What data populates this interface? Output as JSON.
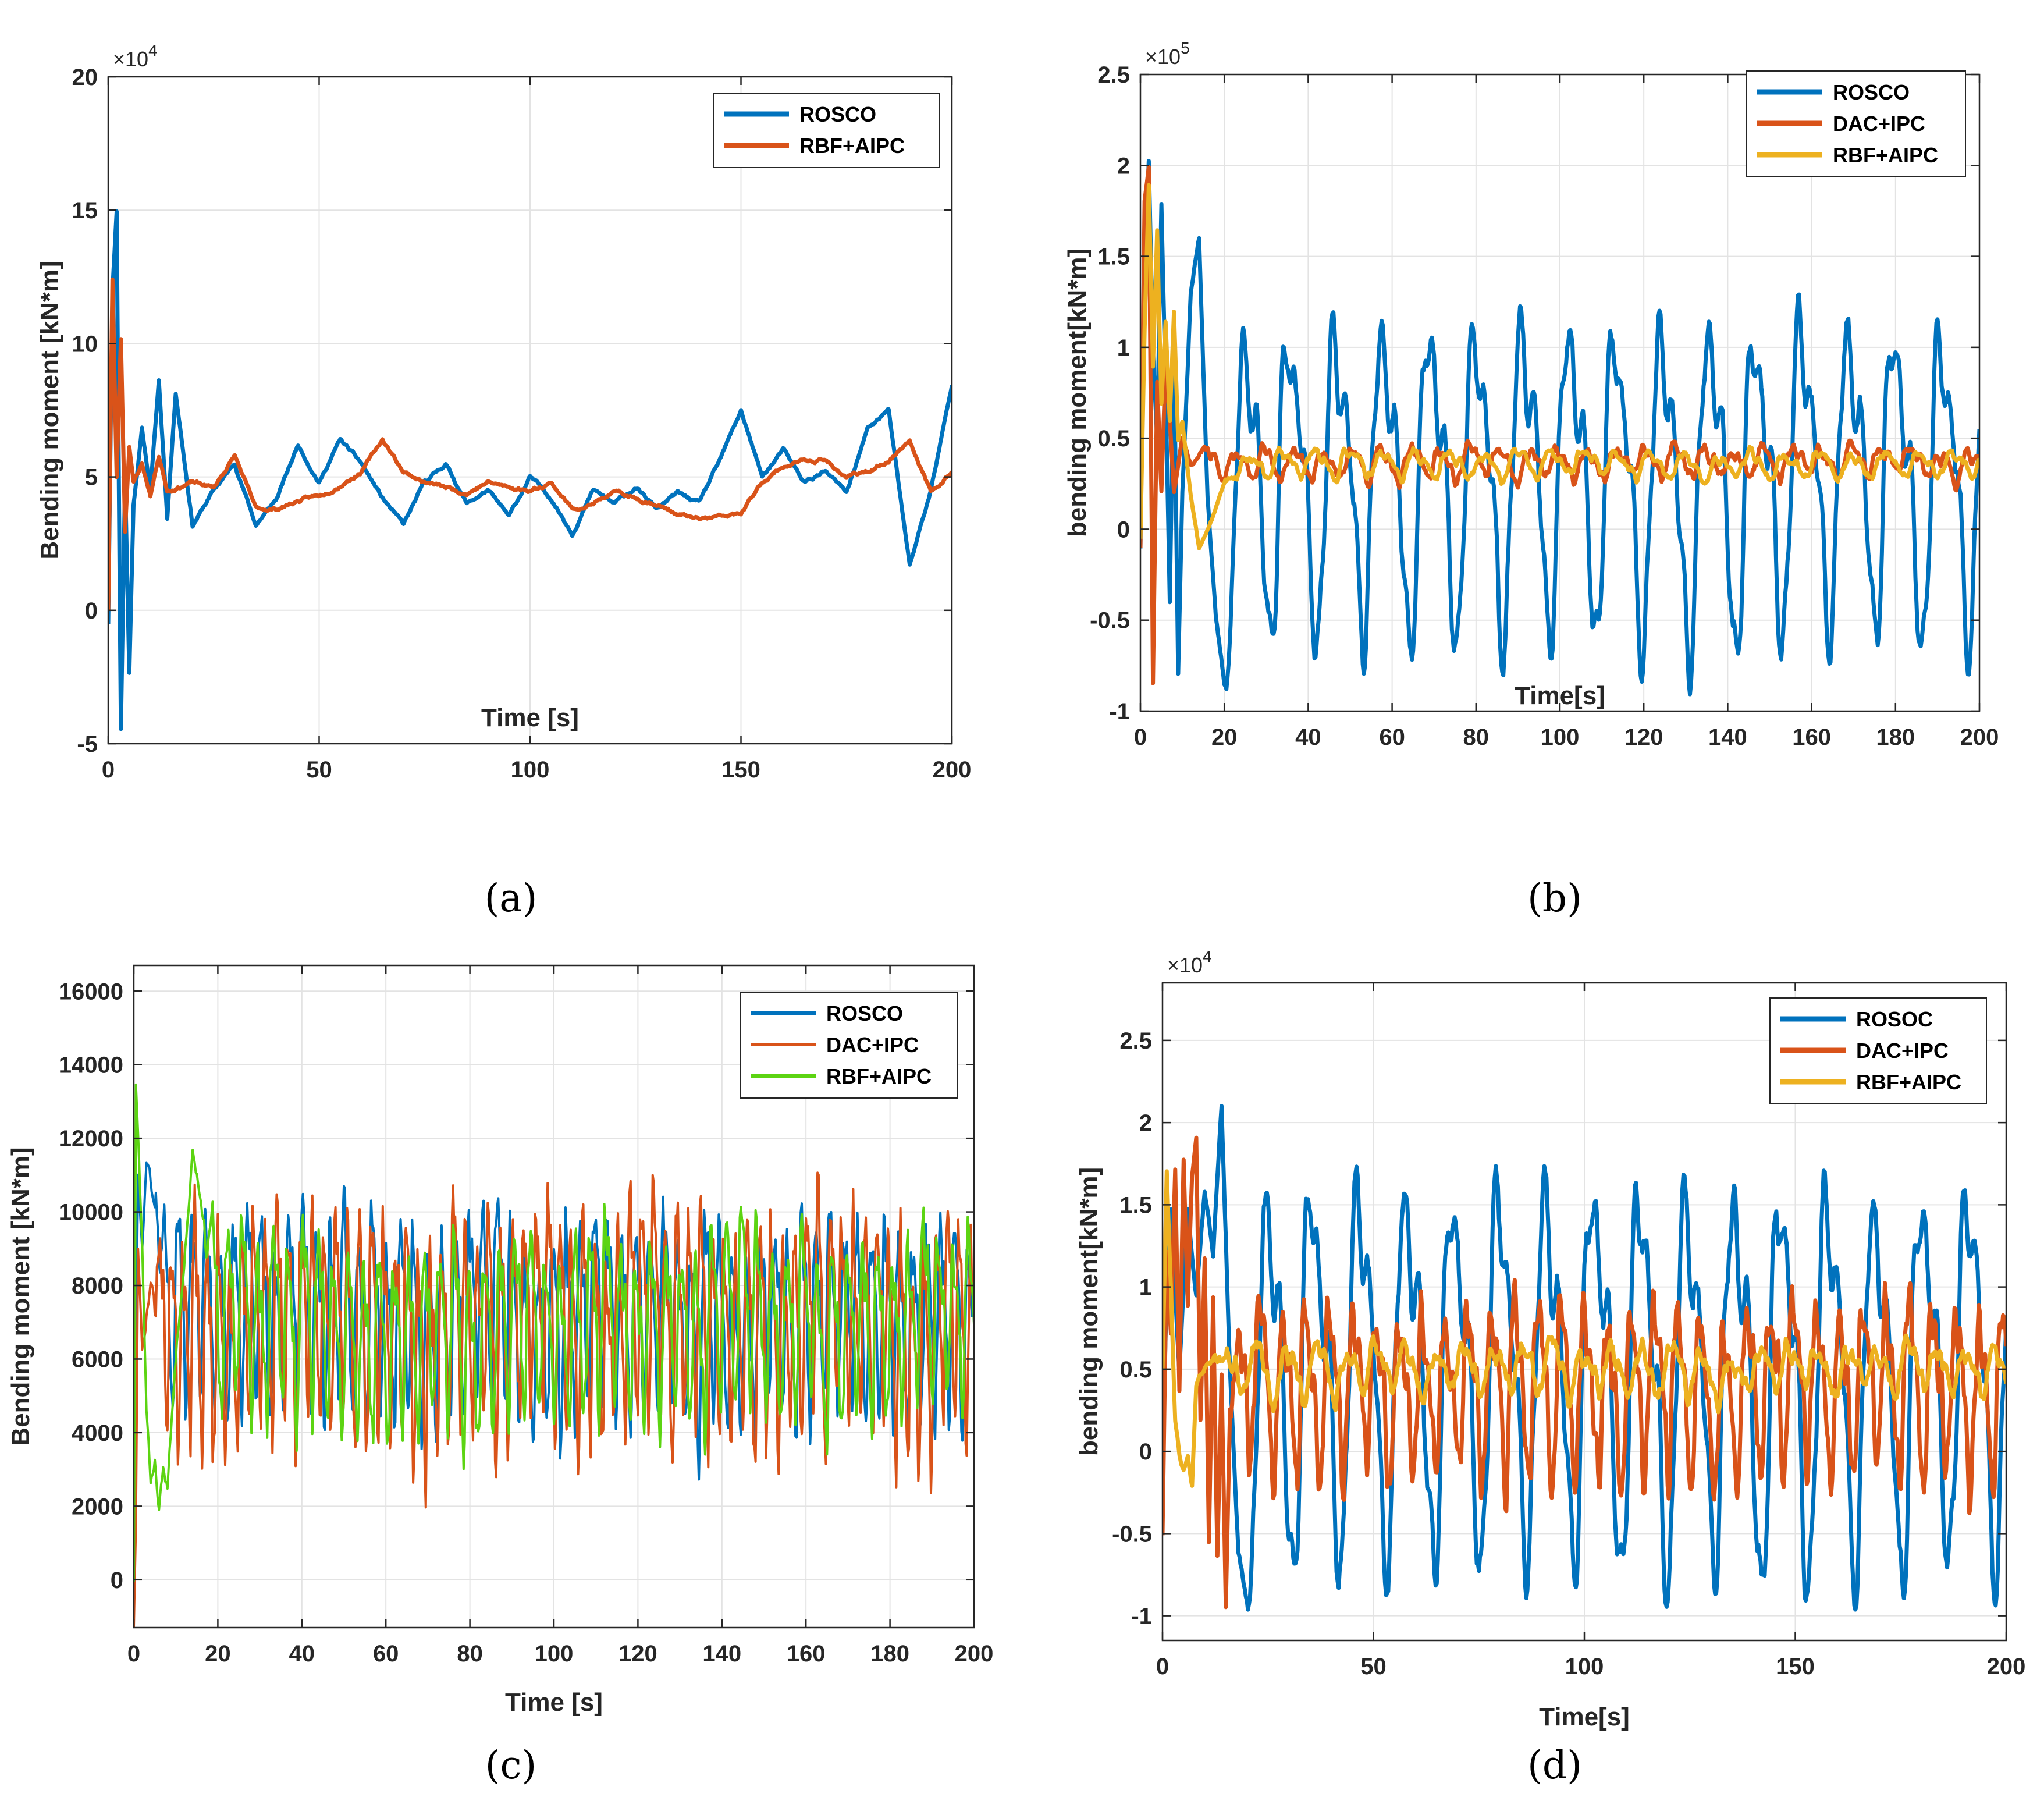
{
  "figure": {
    "captions": [
      "(a)",
      "(b)",
      "(c)",
      "(d)"
    ],
    "colors": {
      "blue": "#0072BD",
      "orange": "#D95319",
      "yellow": "#EDB120",
      "green": "#5CD412",
      "grid": "#e3e3e3",
      "axis": "#262626"
    }
  },
  "chart_data": [
    {
      "type": "line",
      "panel": "a",
      "title": "",
      "xlabel": "Time [s]",
      "ylabel": "Bending moment [kN*m]",
      "exponent_base": "×10",
      "exponent_power": "4",
      "xlim": [
        0,
        200
      ],
      "ylim": [
        -5,
        20
      ],
      "xticks": [
        0,
        50,
        100,
        150,
        200
      ],
      "xtick_labels": [
        "0",
        "50",
        "100",
        "150",
        "200"
      ],
      "yticks": [
        -5,
        0,
        5,
        10,
        15,
        20
      ],
      "ytick_labels": [
        "-5",
        "0",
        "5",
        "10",
        "15",
        "20"
      ],
      "legend_position": "top-right",
      "series": [
        {
          "name": "ROSCO",
          "color": "#0072BD",
          "width": 7,
          "mean": 4.9,
          "base_amp": 0.9,
          "period": 11,
          "noise": 0.35,
          "seed": 11,
          "x": [
            0,
            1,
            2,
            3,
            4,
            5,
            6,
            8,
            10,
            12,
            14,
            16,
            20,
            25,
            30,
            35,
            40,
            45,
            50,
            55,
            60,
            65,
            70,
            75,
            80,
            85,
            90,
            95,
            100,
            105,
            110,
            115,
            120,
            125,
            130,
            135,
            140,
            145,
            150,
            155,
            160,
            165,
            170,
            175,
            180,
            185,
            190,
            195,
            200
          ],
          "y": [
            -0.5,
            12,
            15,
            -4.4,
            5,
            -2.3,
            4,
            6.8,
            4.5,
            8.6,
            3.5,
            8.2,
            3.2,
            4.5,
            5.5,
            3.2,
            4.2,
            6.2,
            4.8,
            6.4,
            5.5,
            4.2,
            3.2,
            4.8,
            5.5,
            4,
            4.5,
            3.5,
            5,
            4.2,
            2.9,
            4.5,
            4,
            4.6,
            3.8,
            4.4,
            4,
            5.6,
            7.5,
            5,
            6,
            4.8,
            5.2,
            4.4,
            6.8,
            7.5,
            1.7,
            4.5,
            8.4
          ]
        },
        {
          "name": "RBF+AIPC",
          "color": "#D95319",
          "width": 7,
          "mean": 4.5,
          "base_amp": 0.5,
          "period": 9,
          "noise": 0.35,
          "seed": 23,
          "x": [
            0,
            1,
            2,
            3,
            4,
            5,
            6,
            8,
            10,
            12,
            14,
            16,
            20,
            25,
            30,
            35,
            40,
            45,
            50,
            55,
            60,
            65,
            70,
            75,
            80,
            85,
            90,
            95,
            100,
            105,
            110,
            115,
            120,
            125,
            130,
            135,
            140,
            145,
            150,
            155,
            160,
            165,
            170,
            175,
            180,
            185,
            190,
            195,
            200
          ],
          "y": [
            0,
            12.4,
            5,
            10.2,
            3,
            6.2,
            4.8,
            5.5,
            4.3,
            5.8,
            4.5,
            4.6,
            4.8,
            4.6,
            5.8,
            3.8,
            3.8,
            4.1,
            4.3,
            4.7,
            5.2,
            6.4,
            5.2,
            4.8,
            4.6,
            4.4,
            4.8,
            4.6,
            4.5,
            4.8,
            3.8,
            4,
            4.4,
            4.2,
            4,
            3.6,
            3.4,
            3.5,
            3.6,
            4.8,
            5.4,
            5.6,
            5.6,
            5,
            5.2,
            5.6,
            6.4,
            4.4,
            5.2
          ]
        }
      ]
    },
    {
      "type": "line",
      "panel": "b",
      "title": "",
      "xlabel": "Time[s]",
      "ylabel": "bending moment[kN*m]",
      "exponent_base": "×10",
      "exponent_power": "5",
      "xlim": [
        0,
        200
      ],
      "ylim": [
        -1,
        2.5
      ],
      "xticks": [
        0,
        20,
        40,
        60,
        80,
        100,
        120,
        140,
        160,
        180,
        200
      ],
      "xtick_labels": [
        "0",
        "20",
        "40",
        "60",
        "80",
        "100",
        "120",
        "140",
        "160",
        "180",
        "200"
      ],
      "yticks": [
        -1,
        -0.5,
        0,
        0.5,
        1,
        1.5,
        2,
        2.5
      ],
      "ytick_labels": [
        "-1",
        "-0.5",
        "0",
        "0.5",
        "1",
        "1.5",
        "2",
        "2.5"
      ],
      "legend_position": "top-right",
      "series": [
        {
          "name": "ROSCO",
          "color": "#0072BD",
          "width": 7,
          "mean": 0.3,
          "base_amp": 0.75,
          "period": 11.1,
          "noise": 0.1,
          "seed": 37,
          "x": [
            0,
            1,
            2,
            3,
            4,
            5,
            6,
            7,
            8,
            9,
            10,
            12,
            14,
            16,
            18,
            20
          ],
          "y": [
            -0.1,
            1.5,
            2.05,
            1.0,
            0.5,
            1.8,
            0.8,
            -0.4,
            1.0,
            -0.8,
            0.2,
            1.3,
            1.6,
            0.2,
            -0.5,
            -0.85
          ]
        },
        {
          "name": "DAC+IPC",
          "color": "#D95319",
          "width": 7,
          "mean": 0.37,
          "base_amp": 0.07,
          "period": 7,
          "noise": 0.05,
          "seed": 41,
          "x": [
            0,
            1,
            2,
            3,
            4,
            5,
            6,
            7,
            8,
            10,
            12,
            14
          ],
          "y": [
            -0.1,
            1.8,
            2.0,
            -0.85,
            0.8,
            0.2,
            0.9,
            0.6,
            0.2,
            0.5,
            0.35,
            0.4
          ]
        },
        {
          "name": "RBF+AIPC",
          "color": "#EDB120",
          "width": 7,
          "mean": 0.36,
          "base_amp": 0.06,
          "period": 8,
          "noise": 0.04,
          "seed": 53,
          "x": [
            0,
            1,
            2,
            3,
            4,
            5,
            6,
            7,
            8,
            9,
            10,
            12,
            14,
            17,
            20
          ],
          "y": [
            -0.05,
            1.1,
            1.9,
            0.9,
            1.65,
            0.7,
            1.15,
            0.6,
            1.2,
            0.5,
            0.6,
            0.2,
            -0.1,
            0.05,
            0.25
          ]
        }
      ]
    },
    {
      "type": "line",
      "panel": "c",
      "title": "",
      "xlabel": "Time [s]",
      "ylabel": "Bending moment [kN*m]",
      "exponent_base": "",
      "exponent_power": "",
      "xlim": [
        0,
        200
      ],
      "ylim": [
        -1300,
        16700
      ],
      "xticks": [
        0,
        20,
        40,
        60,
        80,
        100,
        120,
        140,
        160,
        180,
        200
      ],
      "xtick_labels": [
        "0",
        "20",
        "40",
        "60",
        "80",
        "100",
        "120",
        "140",
        "160",
        "180",
        "200"
      ],
      "yticks": [
        0,
        2000,
        4000,
        6000,
        8000,
        10000,
        12000,
        14000,
        16000
      ],
      "ytick_labels": [
        "0",
        "2000",
        "4000",
        "6000",
        "8000",
        "10000",
        "12000",
        "14000",
        "16000"
      ],
      "legend_position": "top-right",
      "series": [
        {
          "name": "ROSCO",
          "color": "#0072BD",
          "width": 4,
          "mean": 7200,
          "base_amp": 2200,
          "period": 3.3,
          "noise": 1300,
          "seed": 61,
          "x": [
            0,
            1,
            2,
            3,
            5
          ],
          "y": [
            0,
            11000,
            9000,
            11500,
            10000
          ]
        },
        {
          "name": "DAC+IPC",
          "color": "#D95319",
          "width": 4,
          "mean": 7000,
          "base_amp": 2500,
          "period": 2.8,
          "noise": 1500,
          "seed": 71,
          "x": [
            0,
            0.5,
            1,
            2,
            4
          ],
          "y": [
            -1200,
            1500,
            9000,
            6000,
            8000
          ]
        },
        {
          "name": "RBF+AIPC",
          "color": "#5CD412",
          "width": 4,
          "mean": 7000,
          "base_amp": 2000,
          "period": 3.6,
          "noise": 1100,
          "seed": 83,
          "x": [
            0,
            0.5,
            1,
            2,
            3,
            4,
            5,
            6,
            7,
            8,
            10,
            12,
            14,
            16
          ],
          "y": [
            0,
            13400,
            12000,
            9000,
            4500,
            2500,
            3200,
            2000,
            3000,
            2500,
            6000,
            9000,
            11800,
            10500
          ]
        }
      ]
    },
    {
      "type": "line",
      "panel": "d",
      "title": "",
      "xlabel": "Time[s]",
      "ylabel": "bending moment[kN*m]",
      "exponent_base": "×10",
      "exponent_power": "4",
      "xlim": [
        0,
        200
      ],
      "ylim": [
        -1.15,
        2.85
      ],
      "xticks": [
        0,
        50,
        100,
        150,
        200
      ],
      "xtick_labels": [
        "0",
        "50",
        "100",
        "150",
        "200"
      ],
      "yticks": [
        -1,
        -0.5,
        0,
        0.5,
        1,
        1.5,
        2,
        2.5
      ],
      "ytick_labels": [
        "-1",
        "-0.5",
        "0",
        "0.5",
        "1",
        "1.5",
        "2",
        "2.5"
      ],
      "legend_position": "top-right",
      "series": [
        {
          "name": "ROSOC",
          "color": "#0072BD",
          "width": 7,
          "mean": 0.5,
          "base_amp": 1.0,
          "period": 11.1,
          "noise": 0.15,
          "seed": 97,
          "x": [
            0,
            1,
            2,
            4,
            6,
            8,
            10,
            12,
            14,
            16,
            18,
            20
          ],
          "y": [
            0,
            1.0,
            1.5,
            0.5,
            1.5,
            1.0,
            1.6,
            1.2,
            2.1,
            0.5,
            -0.6,
            -0.9
          ]
        },
        {
          "name": "DAC+IPC",
          "color": "#D95319",
          "width": 7,
          "mean": 0.4,
          "base_amp": 0.45,
          "period": 5.5,
          "noise": 0.2,
          "seed": 101,
          "x": [
            0,
            1,
            2,
            3,
            4,
            5,
            6,
            7,
            8,
            9,
            10,
            11,
            12,
            13,
            14,
            15,
            16
          ],
          "y": [
            -0.5,
            1.2,
            0.7,
            1.7,
            0.4,
            1.8,
            0.9,
            1.7,
            1.9,
            0.2,
            1.2,
            -0.5,
            1.0,
            -0.6,
            0.5,
            -0.95,
            0.3
          ]
        },
        {
          "name": "RBF+AIPC",
          "color": "#EDB120",
          "width": 7,
          "mean": 0.5,
          "base_amp": 0.12,
          "period": 7,
          "noise": 0.1,
          "seed": 113,
          "x": [
            0,
            1,
            2,
            3,
            4,
            5,
            6,
            7,
            8,
            10,
            12
          ],
          "y": [
            0.5,
            1.7,
            1.0,
            0.2,
            0.0,
            -0.1,
            0.0,
            -0.2,
            0.4,
            0.5,
            0.55
          ]
        }
      ]
    }
  ]
}
